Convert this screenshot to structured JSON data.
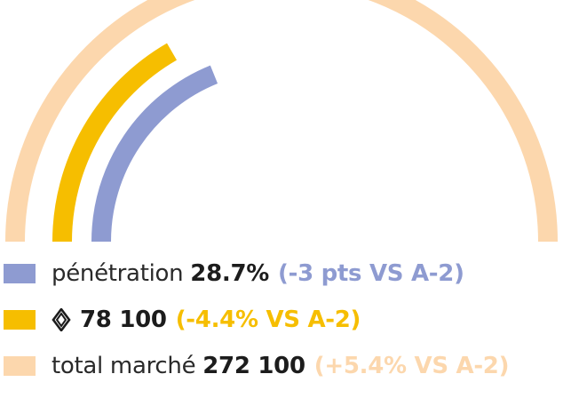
{
  "colors": {
    "market": "#fcd7ad",
    "brand": "#f6be00",
    "penetration": "#8e9bd1"
  },
  "chart_data": {
    "type": "radial-bar",
    "series": [
      {
        "key": "market",
        "label": "total marché",
        "value": "272 100",
        "change": "(+5.4% VS A-2)"
      },
      {
        "key": "brand",
        "label": "",
        "icon": "renault-logo-icon",
        "value": "78 100",
        "change": "(-4.4% VS A-2)"
      },
      {
        "key": "penetration",
        "label": "pénétration",
        "value": "28.7%",
        "change": "(-3 pts VS A-2)"
      }
    ]
  },
  "legend": {
    "penetration": {
      "label": "pénétration",
      "value": "28.7%",
      "change": "(-3 pts VS A-2)"
    },
    "brand": {
      "icon": "renault-logo-icon",
      "value": "78 100",
      "change": "(-4.4% VS A-2)"
    },
    "market": {
      "label": "total marché",
      "value": "272 100",
      "change": "(+5.4% VS A-2)"
    }
  }
}
